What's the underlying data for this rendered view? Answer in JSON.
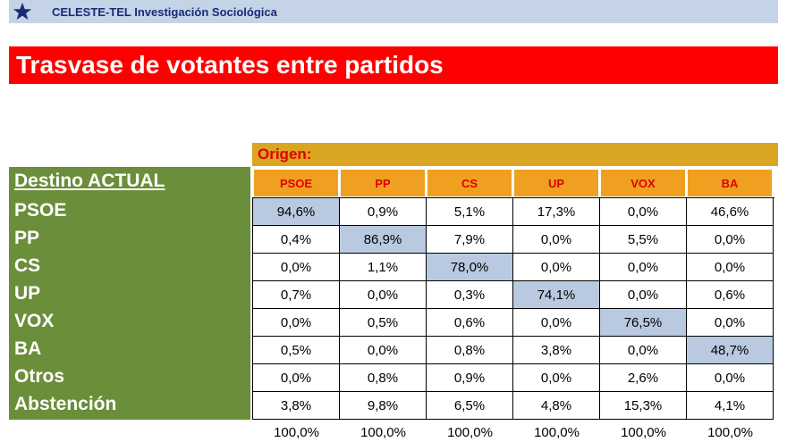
{
  "header": {
    "organization": "CELESTE-TEL Investigación Sociológica",
    "icon": "star-icon"
  },
  "title": "Trasvase de votantes entre partidos",
  "table": {
    "origin_label": "Origen:",
    "destination_label": "Destino ACTUAL",
    "columns": [
      "PSOE",
      "PP",
      "CS",
      "UP",
      "VOX",
      "BA"
    ],
    "rows": [
      {
        "label": "PSOE",
        "values": [
          "94,6%",
          "0,9%",
          "5,1%",
          "17,3%",
          "0,0%",
          "46,6%"
        ]
      },
      {
        "label": "PP",
        "values": [
          "0,4%",
          "86,9%",
          "7,9%",
          "0,0%",
          "5,5%",
          "0,0%"
        ]
      },
      {
        "label": "CS",
        "values": [
          "0,0%",
          "1,1%",
          "78,0%",
          "0,0%",
          "0,0%",
          "0,0%"
        ]
      },
      {
        "label": "UP",
        "values": [
          "0,7%",
          "0,0%",
          "0,3%",
          "74,1%",
          "0,0%",
          "0,6%"
        ]
      },
      {
        "label": "VOX",
        "values": [
          "0,0%",
          "0,5%",
          "0,6%",
          "0,0%",
          "76,5%",
          "0,0%"
        ]
      },
      {
        "label": "BA",
        "values": [
          "0,5%",
          "0,0%",
          "0,8%",
          "3,8%",
          "0,0%",
          "48,7%"
        ]
      },
      {
        "label": "Otros",
        "values": [
          "0,0%",
          "0,8%",
          "0,9%",
          "0,0%",
          "2,6%",
          "0,0%"
        ]
      },
      {
        "label": "Abstención",
        "values": [
          "3,8%",
          "9,8%",
          "6,5%",
          "4,8%",
          "15,3%",
          "4,1%"
        ]
      }
    ],
    "totals": [
      "100,0%",
      "100,0%",
      "100,0%",
      "100,0%",
      "100,0%",
      "100,0%"
    ]
  },
  "colors": {
    "header_bar": "#c5d3e6",
    "title_bar": "#ff0000",
    "origin_bar": "#daa520",
    "column_header": "#f0a020",
    "destination_block": "#6b8e3a",
    "highlight": "#b8c9e0"
  }
}
